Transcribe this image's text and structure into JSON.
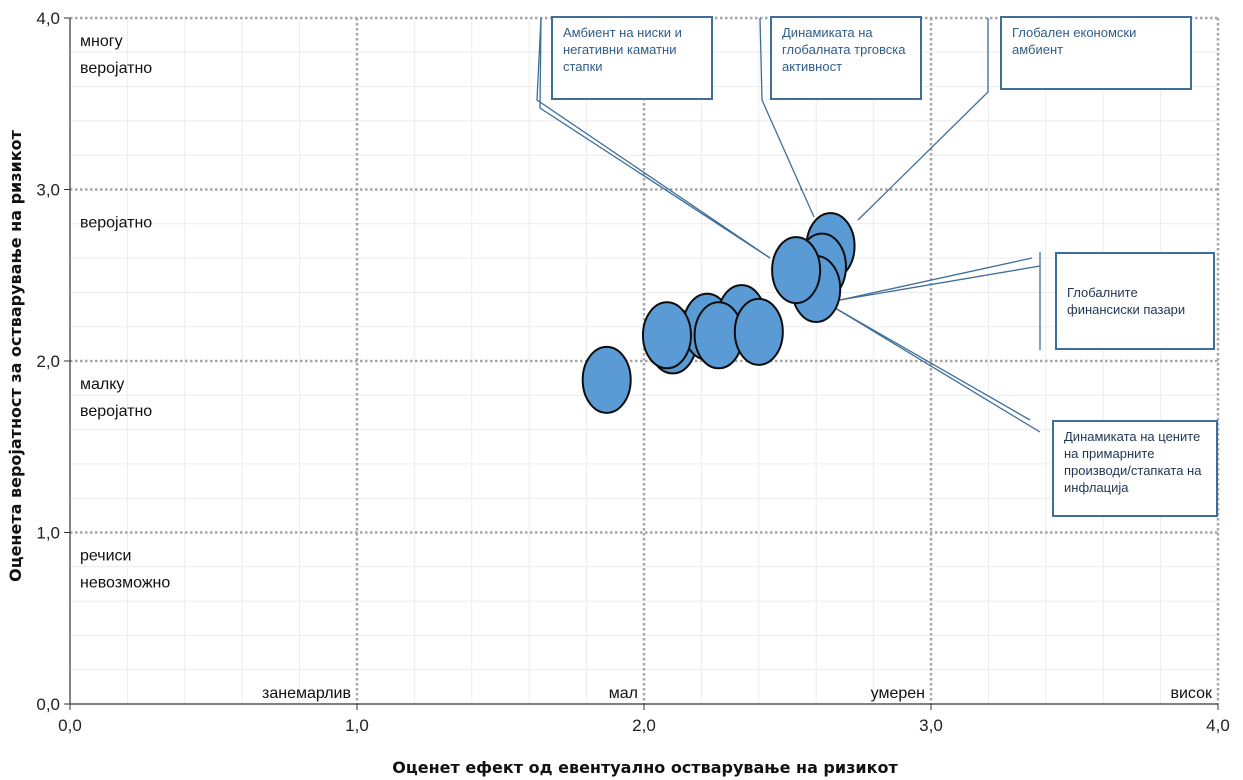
{
  "chart_data": {
    "type": "scatter",
    "xlabel": "Оценет ефект од евентуално остварување на ризикот",
    "ylabel": "Оценета веројатност за остварување на ризикот",
    "xlim": [
      0,
      4
    ],
    "ylim": [
      0,
      4
    ],
    "x_ticks": [
      "0,0",
      "1,0",
      "2,0",
      "3,0",
      "4,0"
    ],
    "y_ticks": [
      "0,0",
      "1,0",
      "2,0",
      "3,0",
      "4,0"
    ],
    "grid": true,
    "x_zones": [
      "занемарлив",
      "мал",
      "умерен",
      "висок"
    ],
    "y_zones": [
      "речиси\nневозможно",
      "малку\nверојатно",
      "веројатно",
      "многу\nверојатно"
    ],
    "points": [
      {
        "x": 1.87,
        "y": 1.89
      },
      {
        "x": 2.1,
        "y": 2.12
      },
      {
        "x": 2.22,
        "y": 2.2
      },
      {
        "x": 2.34,
        "y": 2.25
      },
      {
        "x": 2.08,
        "y": 2.15
      },
      {
        "x": 2.26,
        "y": 2.15
      },
      {
        "x": 2.4,
        "y": 2.17
      },
      {
        "x": 2.65,
        "y": 2.67
      },
      {
        "x": 2.62,
        "y": 2.55
      },
      {
        "x": 2.6,
        "y": 2.42
      },
      {
        "x": 2.53,
        "y": 2.53
      }
    ],
    "annotations": [
      "Амбиент на ниски и\nнегативни каматни\nстапки",
      "Динамиката на\nглобалната трговска\nактивност",
      "Глобален економски\nамбиент",
      "Глобалните\nфинансиски пазари",
      "Динамиката на цените\nна примарните\nпроизводи/стапката на\nинфлација"
    ]
  },
  "colors": {
    "bubble_fill": "#5b9bd5",
    "bubble_stroke": "#0d0d0d",
    "grid": "#a6a6a6",
    "callout_line": "#3f6e99"
  }
}
